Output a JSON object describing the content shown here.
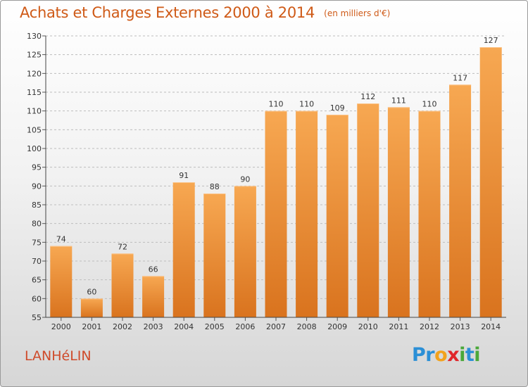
{
  "title": "Achats et Charges Externes 2000 à 2014",
  "unit": "(en milliers d'€)",
  "commune": "LANHéLIN",
  "logo": {
    "text": "Proxiti",
    "letters": [
      "P",
      "r",
      "o",
      "x",
      "i",
      "t",
      "i"
    ],
    "colors": [
      "#2b8fd6",
      "#2b8fd6",
      "#f2a21c",
      "#e0262b",
      "#4aa83a",
      "#2b8fd6",
      "#4aa83a"
    ]
  },
  "colors": {
    "bar_light": "#f7a852",
    "bar_dark": "#d9731e",
    "title": "#cf5a17",
    "grid": "#bdbdbd"
  },
  "chart_data": {
    "type": "bar",
    "title": "Achats et Charges Externes 2000 à 2014",
    "unit": "(en milliers d'€)",
    "categories": [
      "2000",
      "2001",
      "2002",
      "2003",
      "2004",
      "2005",
      "2006",
      "2007",
      "2008",
      "2009",
      "2010",
      "2011",
      "2012",
      "2013",
      "2014"
    ],
    "values": [
      74,
      60,
      72,
      66,
      91,
      88,
      90,
      110,
      110,
      109,
      112,
      111,
      110,
      117,
      127
    ],
    "ylim": [
      55,
      130
    ],
    "yticks": [
      55,
      60,
      65,
      70,
      75,
      80,
      85,
      90,
      95,
      100,
      105,
      110,
      115,
      120,
      125,
      130
    ],
    "grid": true
  }
}
